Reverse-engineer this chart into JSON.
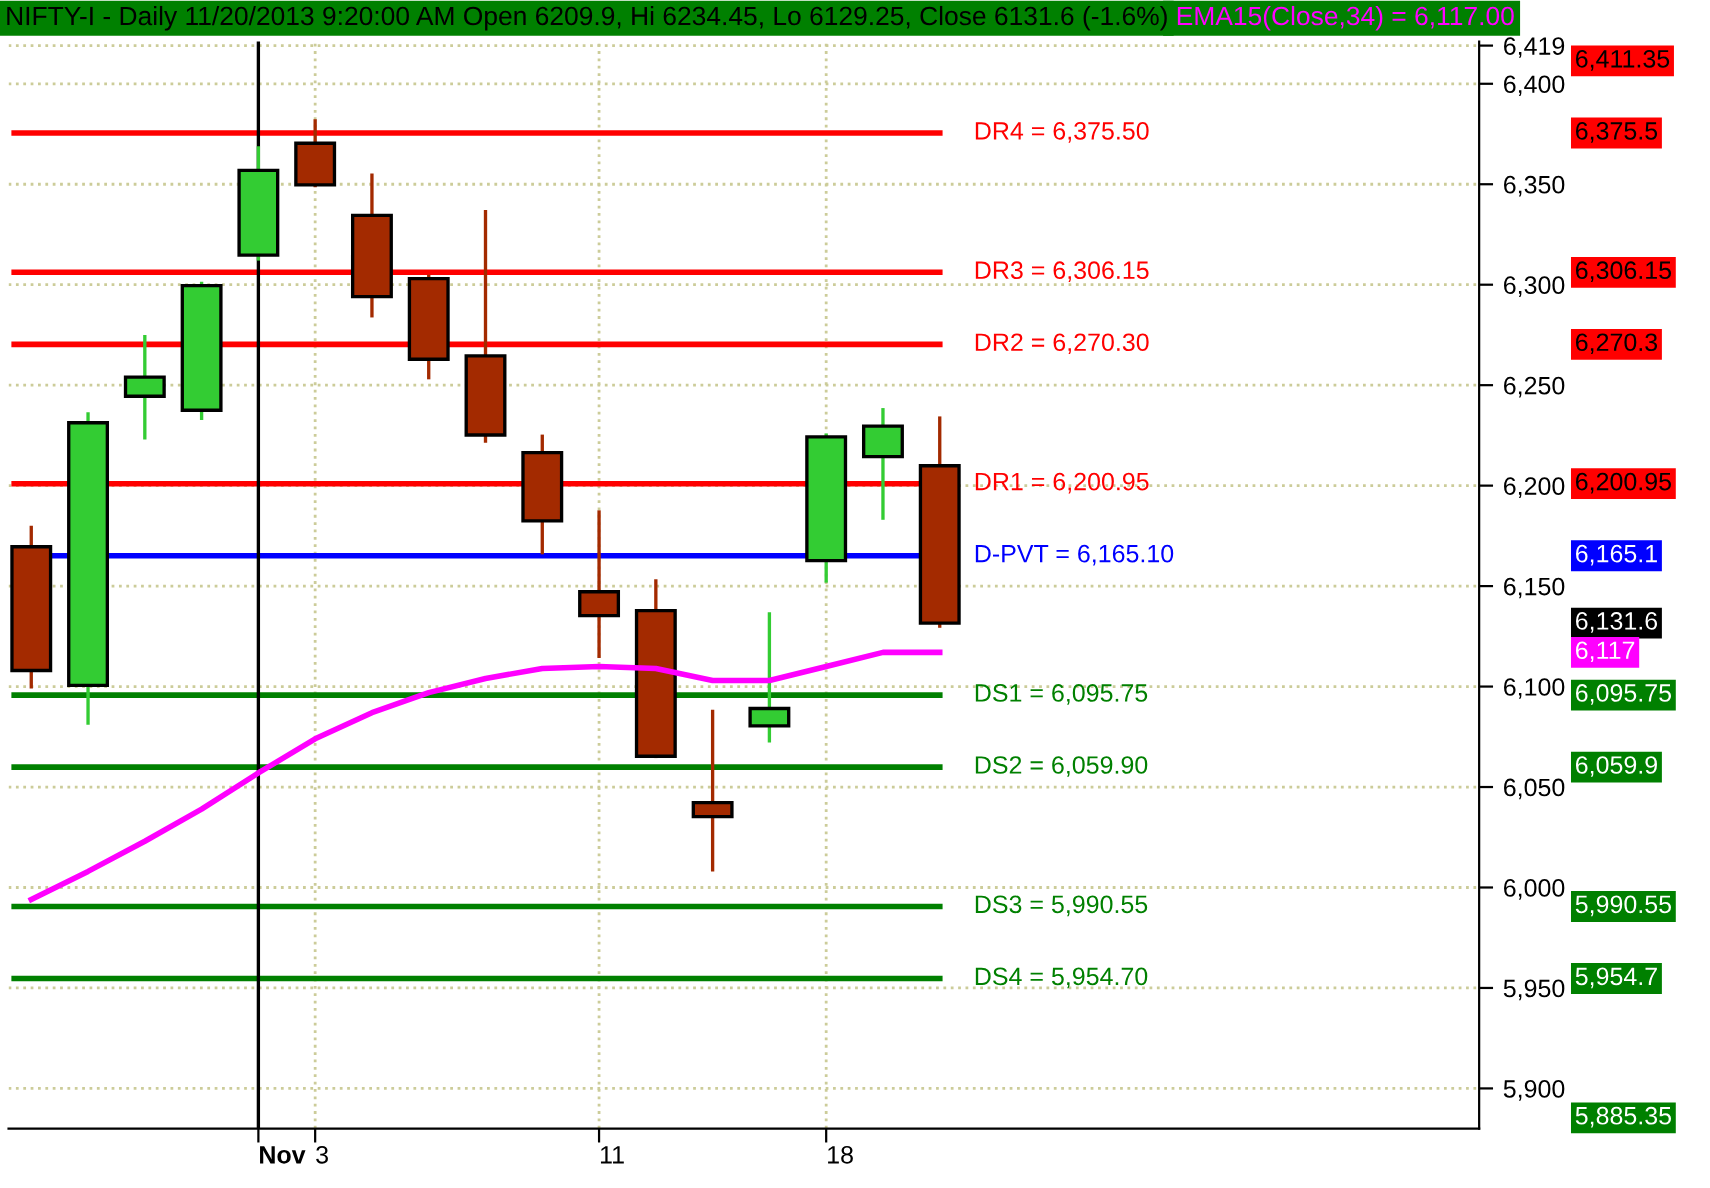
{
  "chart_data": {
    "type": "candlestick",
    "title": "NIFTY-I - Daily 11/20/2013 9:20:00 AM Open 6209.9, Hi 6234.45, Lo 6129.25, Close 6131.6 (-1.6%)",
    "categories": [
      null,
      null,
      null,
      null,
      "Nov",
      "3",
      null,
      null,
      null,
      null,
      "11",
      null,
      null,
      null,
      "18",
      null,
      null
    ],
    "ohlc": [
      [
        6169.6,
        6180,
        6099,
        6108
      ],
      [
        6100.6,
        6236.5,
        6081,
        6231.3
      ],
      [
        6244.5,
        6275,
        6223,
        6254
      ],
      [
        6237.5,
        6301.5,
        6232.7,
        6299.5
      ],
      [
        6314.7,
        6368.9,
        6312,
        6356.9
      ],
      [
        6370.4,
        6382.3,
        6348.5,
        6349.7
      ],
      [
        6334.5,
        6355.4,
        6283.7,
        6294.1
      ],
      [
        6303,
        6305,
        6252.9,
        6262.9
      ],
      [
        6264.6,
        6337.2,
        6221.3,
        6225.2
      ],
      [
        6216.4,
        6225.4,
        6165.8,
        6182.5
      ],
      [
        6147.2,
        6187.7,
        6114.2,
        6135.3
      ],
      [
        6137.8,
        6153.4,
        6064.4,
        6065.3
      ],
      [
        6042.2,
        6088.5,
        6008,
        6035.3
      ],
      [
        6080.4,
        6137,
        6072.2,
        6089.1
      ],
      [
        6162.7,
        6226,
        6151.7,
        6224.3
      ],
      [
        6214.4,
        6238.6,
        6183,
        6229.6
      ],
      [
        6209.9,
        6234.45,
        6129.25,
        6131.6
      ]
    ],
    "colors": [
      "#a32a00",
      "#33cc33",
      "#33cc33",
      "#33cc33",
      "#33cc33",
      "#a32a00",
      "#a32a00",
      "#a32a00",
      "#a32a00",
      "#a32a00",
      "#a32a00",
      "#a32a00",
      "#a32a00",
      "#33cc33",
      "#33cc33",
      "#33cc33",
      "#a32a00"
    ],
    "series": [
      {
        "name": "EMA15(Close,34) = 6,117.00",
        "type": "line",
        "color": "#ff00ff",
        "values": [
          5994,
          6008,
          6023,
          6039,
          6057,
          6074,
          6087,
          6097,
          6104,
          6109,
          6110,
          6109,
          6103,
          6103,
          6110,
          6117,
          6117
        ]
      }
    ],
    "ref_lines": [
      {
        "axis": "y",
        "value": 6375.5,
        "label": "DR4 = 6,375.50",
        "color": "#ff0000"
      },
      {
        "axis": "y",
        "value": 6306.15,
        "label": "DR3 = 6,306.15",
        "color": "#ff0000"
      },
      {
        "axis": "y",
        "value": 6270.3,
        "label": "DR2 = 6,270.30",
        "color": "#ff0000"
      },
      {
        "axis": "y",
        "value": 6200.95,
        "label": "DR1 = 6,200.95",
        "color": "#ff0000"
      },
      {
        "axis": "y",
        "value": 6165.1,
        "label": "D-PVT = 6,165.10",
        "color": "#0000ff"
      },
      {
        "axis": "y",
        "value": 6095.75,
        "label": "DS1 = 6,095.75",
        "color": "#008000"
      },
      {
        "axis": "y",
        "value": 6059.9,
        "label": "DS2 = 6,059.90",
        "color": "#008000"
      },
      {
        "axis": "y",
        "value": 5990.55,
        "label": "DS3 = 5,990.55",
        "color": "#008000"
      },
      {
        "axis": "y",
        "value": 5954.7,
        "label": "DS4 = 5,954.70",
        "color": "#008000"
      },
      {
        "axis": "x",
        "value": "Nov",
        "color": "#000000"
      }
    ],
    "annotations": [
      "6,411.35",
      "6,375.5",
      "6,306.15",
      "6,270.3",
      "6,200.95",
      "6,165.1",
      "6,131.6",
      "6,117",
      "6,095.75",
      "6,059.9",
      "5,990.55",
      "5,954.7",
      "5,885.35"
    ],
    "ylim": [
      5880,
      6421
    ],
    "yticks": [
      {
        "value": 5900,
        "label": "5,900"
      },
      {
        "value": 5950,
        "label": "5,950"
      },
      {
        "value": 6000,
        "label": "6,000"
      },
      {
        "value": 6050,
        "label": "6,050"
      },
      {
        "value": 6100,
        "label": "6,100"
      },
      {
        "value": 6150,
        "label": "6,150"
      },
      {
        "value": 6200,
        "label": "6,200"
      },
      {
        "value": 6250,
        "label": "6,250"
      },
      {
        "value": 6300,
        "label": "6,300"
      },
      {
        "value": 6350,
        "label": "6,350"
      },
      {
        "value": 6400,
        "label": "6,400"
      },
      {
        "value": 6419,
        "label": "6,419"
      }
    ],
    "grid": true
  }
}
